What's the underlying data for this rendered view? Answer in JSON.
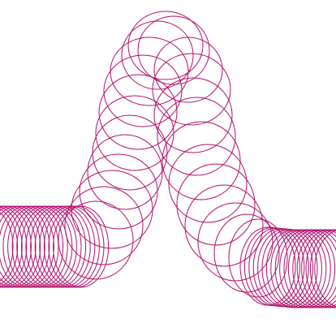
{
  "drawing": {
    "subject": "slinky-coil",
    "colors": {
      "background": "#ffffff",
      "stroke": "#b0106e"
    }
  }
}
